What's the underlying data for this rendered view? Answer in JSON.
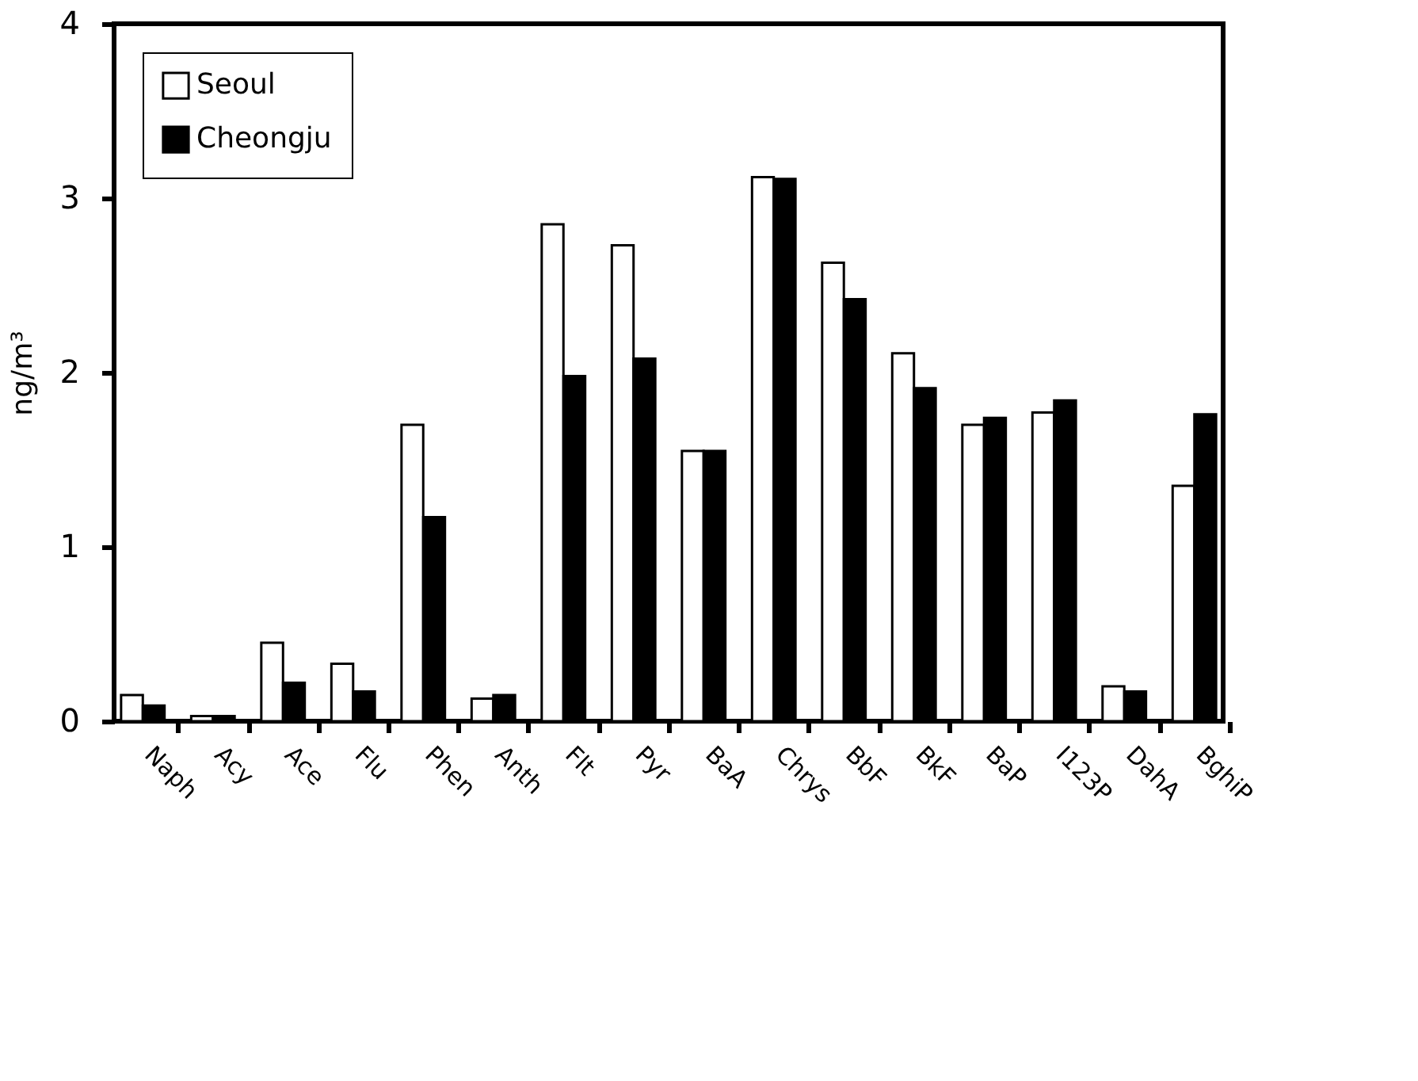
{
  "chart_data": {
    "type": "bar",
    "ylabel": "ng/m³",
    "categories": [
      "Naph",
      "Acy",
      "Ace",
      "Flu",
      "Phen",
      "Anth",
      "Flt",
      "Pyr",
      "BaA",
      "Chrys",
      "BbF",
      "BkF",
      "BaP",
      "I123P",
      "DahA",
      "BghiP"
    ],
    "series": [
      {
        "name": "Seoul",
        "color": "#ffffff",
        "values": [
          0.15,
          0.03,
          0.45,
          0.33,
          1.7,
          0.13,
          2.85,
          2.73,
          1.55,
          3.12,
          2.63,
          2.11,
          1.7,
          1.77,
          0.2,
          1.35
        ]
      },
      {
        "name": "Cheongju",
        "color": "#000000",
        "values": [
          0.09,
          0.03,
          0.22,
          0.17,
          1.17,
          0.15,
          1.98,
          2.08,
          1.55,
          3.11,
          2.42,
          1.91,
          1.74,
          1.84,
          0.17,
          1.76
        ]
      }
    ],
    "ylim": [
      0,
      4
    ],
    "yticks": [
      0,
      1,
      2,
      3,
      4
    ],
    "grid": false,
    "legend": "top left"
  }
}
